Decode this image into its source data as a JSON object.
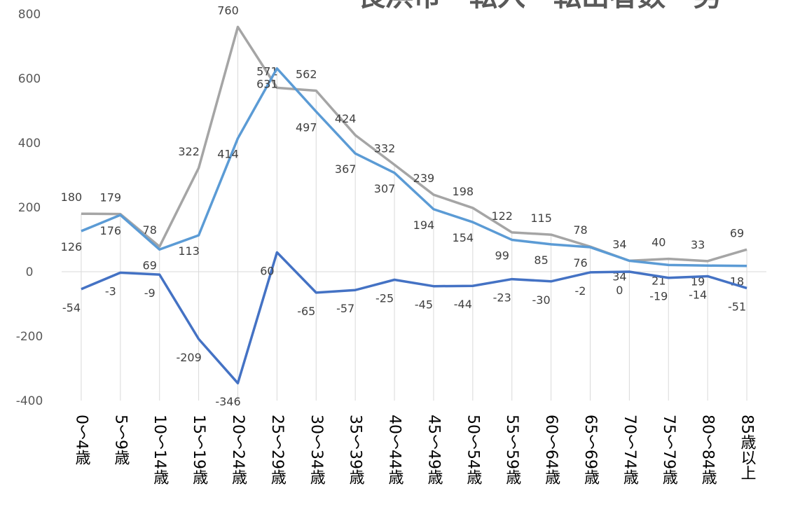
{
  "chart_data": {
    "type": "line",
    "title": "長浜市　転入　転出者数　男",
    "categories": [
      "0～4歳",
      "5～9歳",
      "10～14歳",
      "15～19歳",
      "20～24歳",
      "25～29歳",
      "30～34歳",
      "35～39歳",
      "40～44歳",
      "45～49歳",
      "50～54歳",
      "55～59歳",
      "60～64歳",
      "65～69歳",
      "70～74歳",
      "75～79歳",
      "80～84歳",
      "85歳以上"
    ],
    "series": [
      {
        "color": "#a5a5a5",
        "values": [
          180,
          179,
          78,
          322,
          760,
          571,
          562,
          424,
          332,
          239,
          198,
          122,
          115,
          78,
          34,
          40,
          33,
          69
        ]
      },
      {
        "color": "#5b9bd5",
        "values": [
          126,
          176,
          69,
          113,
          414,
          631,
          497,
          367,
          307,
          194,
          154,
          99,
          85,
          76,
          34,
          21,
          19,
          18
        ]
      },
      {
        "color": "#4472c4",
        "values": [
          -54,
          -3,
          -9,
          -209,
          -346,
          60,
          -65,
          -57,
          -25,
          -45,
          -44,
          -23,
          -30,
          -2,
          0,
          -19,
          -14,
          -51
        ]
      }
    ],
    "ylim": [
      -400,
      800
    ],
    "yticks": [
      -400,
      -200,
      0,
      200,
      400,
      600,
      800
    ]
  }
}
